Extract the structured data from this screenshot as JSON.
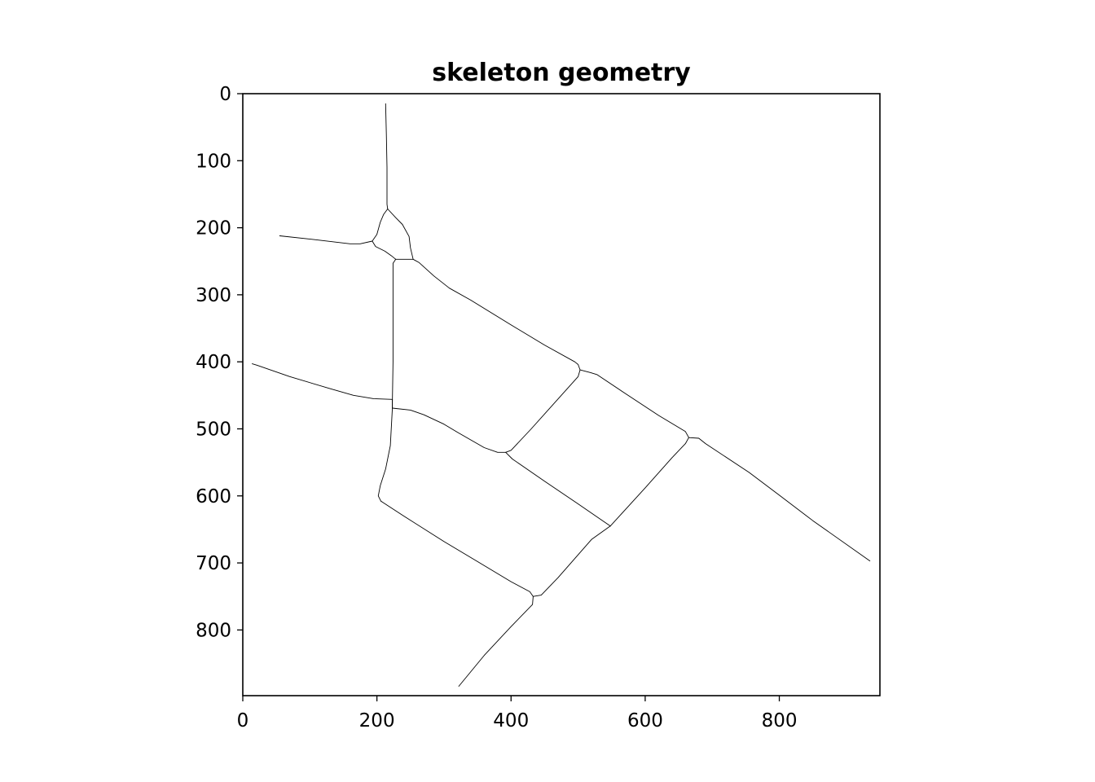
{
  "chart_data": {
    "type": "line",
    "title": "skeleton geometry",
    "xlabel": "",
    "ylabel": "",
    "xlim": [
      0,
      950
    ],
    "ylim": [
      898,
      0
    ],
    "y_axis_inverted": true,
    "grid": false,
    "legend": "none",
    "x_ticks": [
      0,
      200,
      400,
      600,
      800
    ],
    "y_ticks": [
      0,
      100,
      200,
      300,
      400,
      500,
      600,
      700,
      800
    ],
    "line_color": "#000000",
    "axes_color": "#000000",
    "background": "#ffffff",
    "series": [
      {
        "points": [
          [
            213,
            15
          ],
          [
            214,
            60
          ],
          [
            215,
            110
          ],
          [
            215,
            145
          ],
          [
            215,
            165
          ],
          [
            216,
            172
          ]
        ]
      },
      {
        "points": [
          [
            216,
            172
          ],
          [
            210,
            180
          ],
          [
            205,
            192
          ],
          [
            200,
            210
          ],
          [
            193,
            220
          ]
        ]
      },
      {
        "points": [
          [
            216,
            172
          ],
          [
            228,
            185
          ],
          [
            238,
            195
          ],
          [
            248,
            213
          ],
          [
            250,
            230
          ],
          [
            254,
            247
          ]
        ]
      },
      {
        "points": [
          [
            55,
            212
          ],
          [
            110,
            218
          ],
          [
            160,
            224
          ],
          [
            175,
            224
          ],
          [
            193,
            220
          ]
        ]
      },
      {
        "points": [
          [
            193,
            220
          ],
          [
            198,
            228
          ],
          [
            212,
            235
          ],
          [
            222,
            242
          ],
          [
            228,
            247
          ]
        ]
      },
      {
        "points": [
          [
            228,
            247
          ],
          [
            254,
            247
          ]
        ]
      },
      {
        "points": [
          [
            228,
            247
          ],
          [
            224,
            253
          ],
          [
            224,
            300
          ],
          [
            224,
            400
          ],
          [
            223,
            460
          ],
          [
            223,
            469
          ]
        ]
      },
      {
        "points": [
          [
            254,
            247
          ],
          [
            263,
            252
          ],
          [
            285,
            272
          ],
          [
            308,
            290
          ],
          [
            340,
            308
          ],
          [
            400,
            345
          ],
          [
            450,
            375
          ],
          [
            495,
            400
          ],
          [
            500,
            404
          ],
          [
            503,
            412
          ]
        ]
      },
      {
        "points": [
          [
            503,
            412
          ],
          [
            518,
            416
          ],
          [
            528,
            419
          ],
          [
            570,
            447
          ],
          [
            620,
            480
          ],
          [
            660,
            504
          ],
          [
            665,
            513
          ]
        ]
      },
      {
        "points": [
          [
            665,
            513
          ],
          [
            680,
            514
          ],
          [
            690,
            522
          ],
          [
            755,
            565
          ],
          [
            800,
            599
          ],
          [
            850,
            637
          ],
          [
            935,
            697
          ]
        ]
      },
      {
        "points": [
          [
            14,
            403
          ],
          [
            21,
            405
          ],
          [
            70,
            422
          ],
          [
            130,
            440
          ],
          [
            165,
            450
          ],
          [
            195,
            455
          ],
          [
            223,
            456
          ]
        ]
      },
      {
        "points": [
          [
            223,
            456
          ],
          [
            223,
            469
          ]
        ]
      },
      {
        "points": [
          [
            223,
            469
          ],
          [
            250,
            472
          ],
          [
            270,
            479
          ],
          [
            300,
            493
          ],
          [
            320,
            505
          ],
          [
            360,
            528
          ],
          [
            380,
            535
          ],
          [
            392,
            535
          ]
        ]
      },
      {
        "points": [
          [
            392,
            535
          ],
          [
            400,
            532
          ],
          [
            430,
            500
          ],
          [
            500,
            422
          ],
          [
            503,
            412
          ]
        ]
      },
      {
        "points": [
          [
            392,
            535
          ],
          [
            402,
            545
          ],
          [
            450,
            578
          ],
          [
            500,
            612
          ],
          [
            548,
            645
          ]
        ]
      },
      {
        "points": [
          [
            548,
            645
          ],
          [
            600,
            588
          ],
          [
            640,
            543
          ],
          [
            660,
            522
          ],
          [
            665,
            513
          ]
        ]
      },
      {
        "points": [
          [
            223,
            469
          ],
          [
            220,
            525
          ],
          [
            213,
            560
          ],
          [
            205,
            585
          ],
          [
            202,
            600
          ],
          [
            206,
            608
          ]
        ]
      },
      {
        "points": [
          [
            206,
            608
          ],
          [
            240,
            630
          ],
          [
            300,
            668
          ],
          [
            350,
            698
          ],
          [
            400,
            728
          ],
          [
            428,
            743
          ],
          [
            433,
            750
          ]
        ]
      },
      {
        "points": [
          [
            433,
            750
          ],
          [
            445,
            748
          ],
          [
            470,
            722
          ],
          [
            520,
            665
          ],
          [
            548,
            645
          ]
        ]
      },
      {
        "points": [
          [
            433,
            750
          ],
          [
            432,
            762
          ],
          [
            400,
            795
          ],
          [
            360,
            838
          ],
          [
            322,
            884
          ]
        ]
      }
    ]
  }
}
